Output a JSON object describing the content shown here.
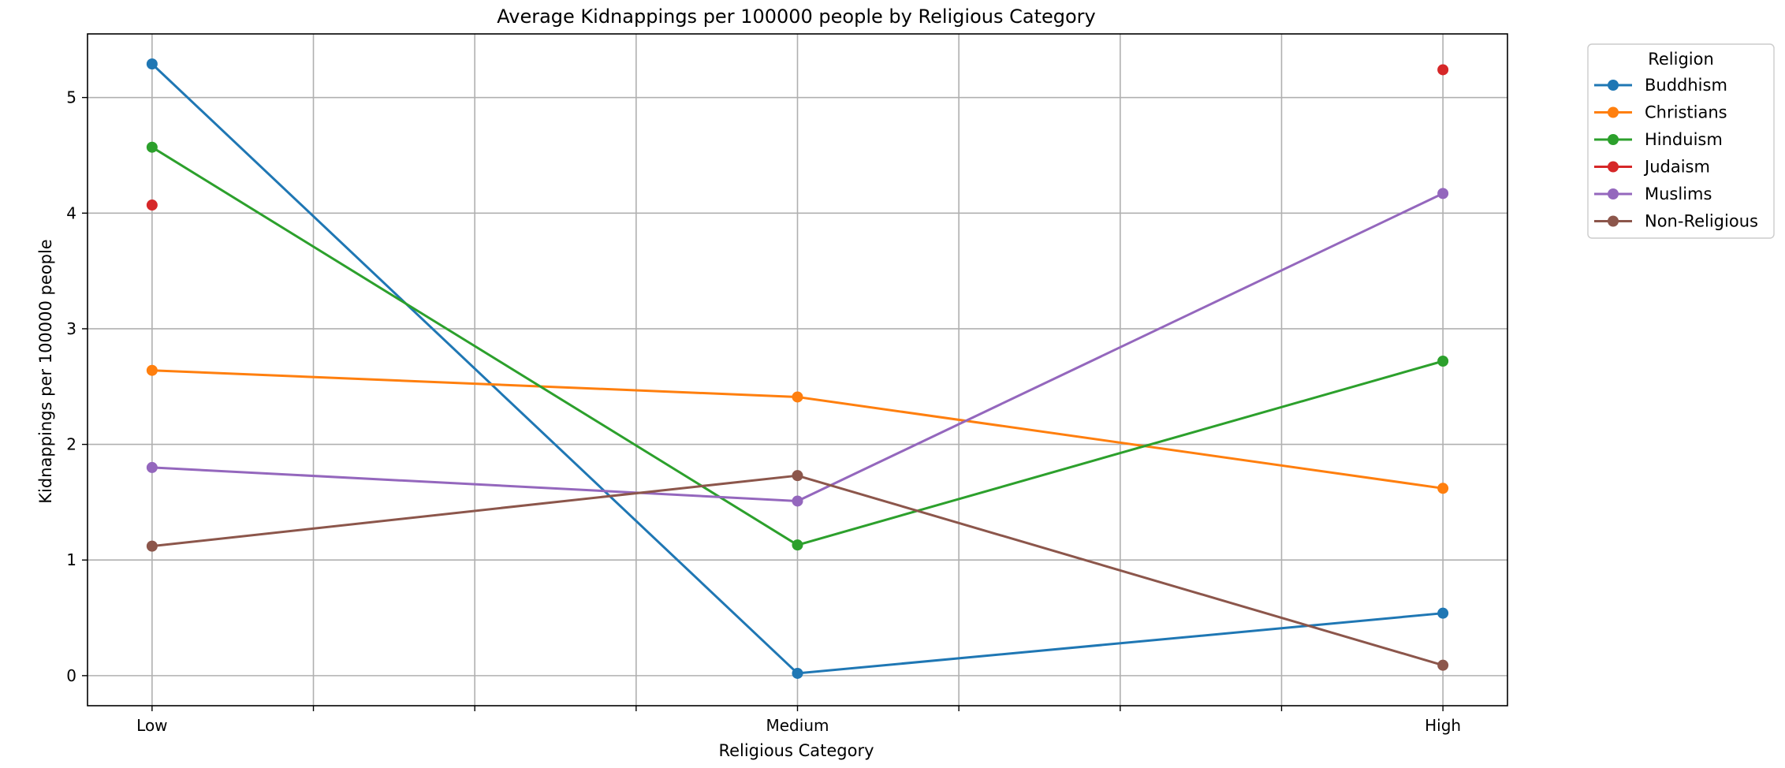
{
  "chart_data": {
    "type": "line",
    "title": "Average Kidnappings per 100000 people by Religious Category",
    "xlabel": "Religious Category",
    "ylabel": "Kidnappings per 100000 people",
    "categories": [
      "Low",
      "Medium",
      "High"
    ],
    "xlim": [
      -0.1,
      2.1
    ],
    "ylim": [
      -0.26,
      5.55
    ],
    "yticks": [
      0,
      1,
      2,
      3,
      4,
      5
    ],
    "grid": true,
    "legend": {
      "title": "Religion",
      "placement": "outside-top-right"
    },
    "series": [
      {
        "name": "Buddhism",
        "color": "#1f77b4",
        "values": [
          5.29,
          0.02,
          0.54
        ]
      },
      {
        "name": "Christians",
        "color": "#ff7f0e",
        "values": [
          2.64,
          2.41,
          1.62
        ]
      },
      {
        "name": "Hinduism",
        "color": "#2ca02c",
        "values": [
          4.57,
          1.13,
          2.72
        ]
      },
      {
        "name": "Judaism",
        "color": "#d62728",
        "values": [
          4.07,
          null,
          5.24
        ]
      },
      {
        "name": "Muslims",
        "color": "#9467bd",
        "values": [
          1.8,
          1.51,
          4.17
        ]
      },
      {
        "name": "Non-Religious",
        "color": "#8c564b",
        "values": [
          1.12,
          1.73,
          0.09
        ]
      }
    ]
  }
}
